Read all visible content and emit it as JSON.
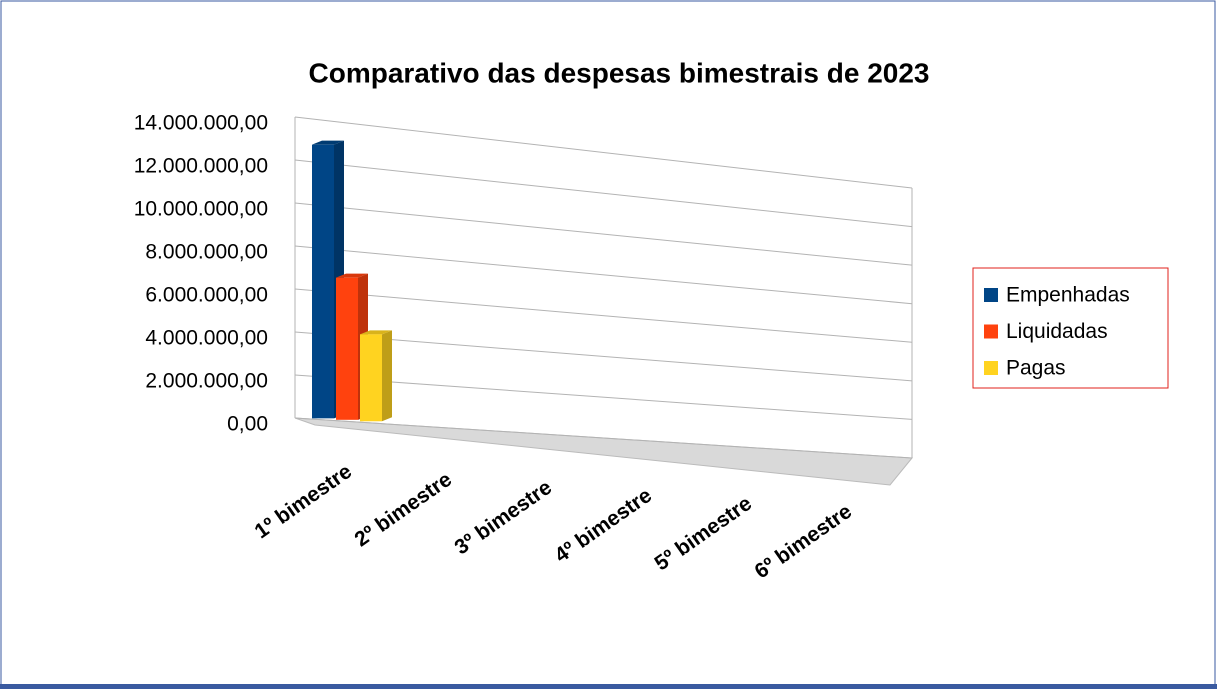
{
  "chart_data": {
    "type": "bar3d",
    "title": "Comparativo das despesas bimestrais de 2023",
    "categories": [
      "1º bimestre",
      "2º bimestre",
      "3º bimestre",
      "4º bimestre",
      "5º bimestre",
      "6º bimestre"
    ],
    "series": [
      {
        "name": "Empenhadas",
        "color": "#004586",
        "values": [
          12900000,
          null,
          null,
          null,
          null,
          null
        ]
      },
      {
        "name": "Liquidadas",
        "color": "#ff420e",
        "values": [
          6700000,
          null,
          null,
          null,
          null,
          null
        ]
      },
      {
        "name": "Pagas",
        "color": "#ffd320",
        "values": [
          4100000,
          null,
          null,
          null,
          null,
          null
        ]
      }
    ],
    "ylim": [
      0,
      14000000
    ],
    "yticks": [
      {
        "value": 0,
        "label": "0,00"
      },
      {
        "value": 2000000,
        "label": "2.000.000,00"
      },
      {
        "value": 4000000,
        "label": "4.000.000,00"
      },
      {
        "value": 6000000,
        "label": "6.000.000,00"
      },
      {
        "value": 8000000,
        "label": "8.000.000,00"
      },
      {
        "value": 10000000,
        "label": "10.000.000,00"
      },
      {
        "value": 12000000,
        "label": "12.000.000,00"
      },
      {
        "value": 14000000,
        "label": "14.000.000,00"
      }
    ],
    "grid": true,
    "legend": "right"
  }
}
